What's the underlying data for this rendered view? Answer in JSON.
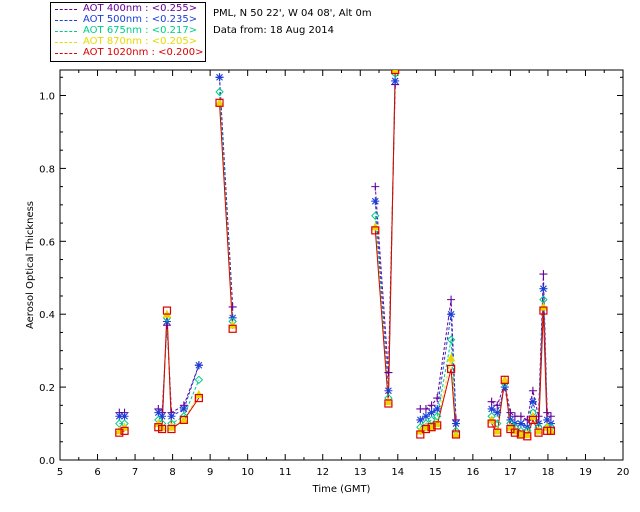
{
  "header": {
    "site": "PML, N 50 22', W 04 08', Alt 0m",
    "date_line": "Data from: 18 Aug 2014"
  },
  "legend": {
    "items": [
      {
        "label": "AOT  400nm : <0.255>",
        "color": "#660099"
      },
      {
        "label": "AOT  500nm : <0.235>",
        "color": "#1a3fd6"
      },
      {
        "label": "AOT  675nm : <0.217>",
        "color": "#00cc88"
      },
      {
        "label": "AOT  870nm : <0.205>",
        "color": "#e8d800"
      },
      {
        "label": "AOT 1020nm : <0.200>",
        "color": "#dd0000"
      }
    ]
  },
  "chart_data": {
    "type": "scatter",
    "title": "",
    "xlabel": "Time (GMT)",
    "ylabel": "Aerosol Optical Thickness",
    "xlim": [
      5,
      20
    ],
    "ylim": [
      0,
      1.07
    ],
    "xticks": [
      5,
      6,
      7,
      8,
      9,
      10,
      11,
      12,
      13,
      14,
      15,
      16,
      17,
      18,
      19,
      20
    ],
    "yticks": [
      0.0,
      0.2,
      0.4,
      0.6,
      0.8,
      1.0
    ],
    "ytick_labels": [
      "0.0",
      "0.2",
      "0.4",
      "0.6",
      "0.8",
      "1.0"
    ],
    "x": [
      6.58,
      6.72,
      7.62,
      7.72,
      7.85,
      7.97,
      8.3,
      8.7,
      9.25,
      9.6,
      13.4,
      13.75,
      13.93,
      14.6,
      14.75,
      14.9,
      15.05,
      15.42,
      15.55,
      16.5,
      16.65,
      16.85,
      17.0,
      17.12,
      17.28,
      17.45,
      17.6,
      17.75,
      17.88,
      17.98,
      18.08
    ],
    "series": [
      {
        "name": "AOT 400nm",
        "marker": "plus",
        "values": [
          0.13,
          0.13,
          0.14,
          0.13,
          0.37,
          0.13,
          0.15,
          0.26,
          1.05,
          0.42,
          0.75,
          0.24,
          1.03,
          0.14,
          0.14,
          0.15,
          0.17,
          0.44,
          0.11,
          0.16,
          0.15,
          0.21,
          0.13,
          0.12,
          0.12,
          0.11,
          0.19,
          0.12,
          0.51,
          0.13,
          0.12
        ]
      },
      {
        "name": "AOT 500nm",
        "marker": "star",
        "values": [
          0.12,
          0.12,
          0.13,
          0.12,
          0.38,
          0.12,
          0.14,
          0.26,
          1.05,
          0.39,
          0.71,
          0.19,
          1.04,
          0.11,
          0.12,
          0.13,
          0.14,
          0.4,
          0.1,
          0.14,
          0.13,
          0.2,
          0.11,
          0.1,
          0.1,
          0.09,
          0.16,
          0.1,
          0.47,
          0.11,
          0.1
        ]
      },
      {
        "name": "AOT 675nm",
        "marker": "diamond",
        "values": [
          0.1,
          0.1,
          0.11,
          0.1,
          0.39,
          0.1,
          0.12,
          0.22,
          1.01,
          0.38,
          0.67,
          0.17,
          1.06,
          0.09,
          0.1,
          0.11,
          0.12,
          0.33,
          0.08,
          0.12,
          0.1,
          0.21,
          0.1,
          0.09,
          0.08,
          0.08,
          0.13,
          0.09,
          0.44,
          0.09,
          0.09
        ]
      },
      {
        "name": "AOT 870nm",
        "marker": "triangle",
        "values": [
          0.08,
          0.09,
          0.1,
          0.09,
          0.4,
          0.09,
          0.11,
          0.18,
          0.98,
          0.37,
          0.64,
          0.16,
          1.07,
          0.08,
          0.09,
          0.09,
          0.1,
          0.28,
          0.07,
          0.11,
          0.08,
          0.22,
          0.09,
          0.08,
          0.07,
          0.07,
          0.12,
          0.08,
          0.42,
          0.09,
          0.08
        ]
      },
      {
        "name": "AOT 1020nm",
        "marker": "square",
        "values": [
          0.075,
          0.08,
          0.09,
          0.085,
          0.41,
          0.085,
          0.11,
          0.17,
          0.98,
          0.36,
          0.63,
          0.155,
          1.07,
          0.07,
          0.085,
          0.09,
          0.095,
          0.25,
          0.07,
          0.1,
          0.075,
          0.22,
          0.085,
          0.075,
          0.07,
          0.065,
          0.11,
          0.075,
          0.41,
          0.08,
          0.08
        ]
      }
    ]
  }
}
